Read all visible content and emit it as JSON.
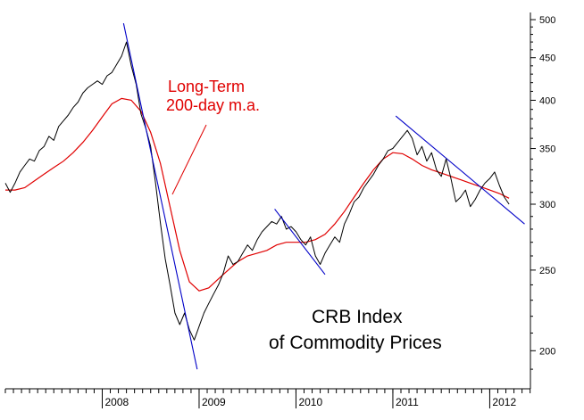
{
  "chart_data": {
    "type": "line",
    "title_lines": [
      "CRB Index",
      "of Commodity Prices"
    ],
    "annotation_lines": [
      "Long-Term",
      "200-day m.a."
    ],
    "y_scale": "log",
    "ylim": [
      180,
      510
    ],
    "y_ticks": [
      200,
      250,
      300,
      350,
      400,
      450,
      500
    ],
    "xlim": [
      2007.0,
      2012.42
    ],
    "year_ticks": [
      2008,
      2009,
      2010,
      2011,
      2012
    ],
    "year_labels": [
      "2008",
      "2009",
      "2010",
      "2011",
      "2012"
    ],
    "colors": {
      "price": "#000000",
      "moving_average": "#e00000",
      "trendline": "#0000c8",
      "axis": "#000000"
    },
    "series": [
      {
        "name": "CRB Index",
        "x": [
          2007.0,
          2007.05,
          2007.1,
          2007.15,
          2007.2,
          2007.25,
          2007.3,
          2007.35,
          2007.4,
          2007.45,
          2007.5,
          2007.55,
          2007.6,
          2007.65,
          2007.7,
          2007.75,
          2007.8,
          2007.85,
          2007.9,
          2007.95,
          2008.0,
          2008.05,
          2008.1,
          2008.15,
          2008.2,
          2008.25,
          2008.3,
          2008.35,
          2008.4,
          2008.45,
          2008.5,
          2008.55,
          2008.6,
          2008.65,
          2008.7,
          2008.75,
          2008.8,
          2008.85,
          2008.9,
          2008.95,
          2009.0,
          2009.05,
          2009.1,
          2009.15,
          2009.2,
          2009.25,
          2009.3,
          2009.35,
          2009.4,
          2009.45,
          2009.5,
          2009.55,
          2009.6,
          2009.65,
          2009.7,
          2009.75,
          2009.8,
          2009.85,
          2009.9,
          2009.95,
          2010.0,
          2010.05,
          2010.1,
          2010.15,
          2010.2,
          2010.25,
          2010.3,
          2010.35,
          2010.4,
          2010.45,
          2010.5,
          2010.55,
          2010.6,
          2010.65,
          2010.7,
          2010.75,
          2010.8,
          2010.85,
          2010.9,
          2010.95,
          2011.0,
          2011.05,
          2011.1,
          2011.15,
          2011.2,
          2011.25,
          2011.3,
          2011.35,
          2011.4,
          2011.45,
          2011.5,
          2011.55,
          2011.6,
          2011.65,
          2011.7,
          2011.75,
          2011.8,
          2011.85,
          2011.9,
          2011.95,
          2012.0,
          2012.05,
          2012.1,
          2012.15,
          2012.2
        ],
        "values": [
          318,
          310,
          318,
          328,
          334,
          340,
          338,
          348,
          352,
          362,
          358,
          372,
          378,
          384,
          392,
          398,
          408,
          414,
          418,
          422,
          418,
          428,
          432,
          442,
          452,
          470,
          440,
          418,
          385,
          370,
          352,
          318,
          285,
          258,
          240,
          222,
          215,
          222,
          212,
          206,
          214,
          222,
          228,
          234,
          240,
          248,
          260,
          254,
          256,
          262,
          268,
          264,
          272,
          278,
          282,
          286,
          284,
          290,
          280,
          282,
          278,
          272,
          268,
          274,
          260,
          254,
          262,
          268,
          274,
          270,
          284,
          292,
          302,
          306,
          314,
          320,
          326,
          334,
          340,
          348,
          350,
          356,
          362,
          368,
          360,
          344,
          352,
          338,
          346,
          330,
          324,
          340,
          322,
          302,
          306,
          312,
          298,
          304,
          312,
          318,
          322,
          328,
          316,
          306,
          300
        ]
      },
      {
        "name": "200-day m.a.",
        "x": [
          2007.0,
          2007.1,
          2007.2,
          2007.3,
          2007.4,
          2007.5,
          2007.6,
          2007.7,
          2007.8,
          2007.9,
          2008.0,
          2008.1,
          2008.2,
          2008.3,
          2008.4,
          2008.5,
          2008.6,
          2008.7,
          2008.8,
          2008.9,
          2009.0,
          2009.1,
          2009.2,
          2009.3,
          2009.4,
          2009.5,
          2009.6,
          2009.7,
          2009.8,
          2009.9,
          2010.0,
          2010.1,
          2010.2,
          2010.3,
          2010.4,
          2010.5,
          2010.6,
          2010.7,
          2010.8,
          2010.9,
          2011.0,
          2011.1,
          2011.2,
          2011.3,
          2011.4,
          2011.5,
          2011.6,
          2011.7,
          2011.8,
          2011.9,
          2012.0,
          2012.1,
          2012.2
        ],
        "values": [
          312,
          312,
          314,
          320,
          326,
          332,
          338,
          346,
          356,
          368,
          382,
          396,
          402,
          400,
          388,
          366,
          336,
          298,
          264,
          242,
          236,
          238,
          244,
          250,
          256,
          260,
          262,
          264,
          268,
          270,
          270,
          270,
          272,
          276,
          284,
          294,
          306,
          318,
          330,
          340,
          346,
          345,
          340,
          334,
          330,
          327,
          324,
          321,
          318,
          315,
          312,
          309,
          305
        ]
      }
    ],
    "trendlines": [
      {
        "x": [
          2008.22,
          2008.98
        ],
        "values": [
          495,
          190
        ]
      },
      {
        "x": [
          2009.78,
          2010.3
        ],
        "values": [
          296,
          247
        ]
      },
      {
        "x": [
          2011.03,
          2012.36
        ],
        "values": [
          383,
          284
        ]
      }
    ]
  }
}
